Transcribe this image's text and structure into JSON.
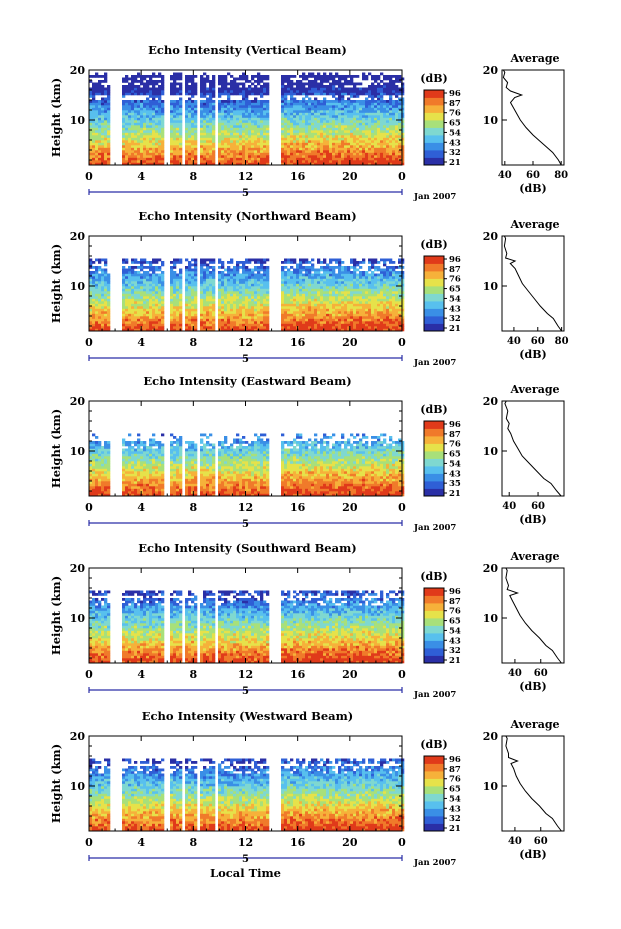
{
  "figure": {
    "x_axis_label": "Local Time",
    "date_label": "Jan 2007",
    "day_label": "5",
    "colorbar_unit": "(dB)",
    "average_title": "Average",
    "average_xlabel": "(dB)",
    "y_label": "Height (km)",
    "colors": [
      "#2a2fa6",
      "#2f5fd6",
      "#3a8fe6",
      "#58c0ee",
      "#7fd8d0",
      "#a8e07a",
      "#e6e24a",
      "#f6b13a",
      "#f07a2a",
      "#e03a1a"
    ]
  },
  "chart_data": [
    {
      "type": "heatmap",
      "title": "Echo Intensity (Vertical Beam)",
      "xlabel": "",
      "ylabel": "Height (km)",
      "xlim": [
        0,
        24
      ],
      "ylim": [
        1,
        20
      ],
      "x_ticks": [
        "0",
        "4",
        "8",
        "12",
        "16",
        "20",
        "0"
      ],
      "y_ticks": [
        "20",
        "10"
      ],
      "colorbar": {
        "label": "(dB)",
        "ticks": [
          "96",
          "87",
          "76",
          "65",
          "54",
          "43",
          "32",
          "21"
        ]
      },
      "top_height_km": 19.5,
      "gaps_h": [
        [
          1.55,
          2.45
        ],
        [
          5.7,
          6.0
        ],
        [
          7.0,
          7.35
        ],
        [
          8.15,
          8.45
        ],
        [
          9.5,
          9.85
        ],
        [
          13.7,
          14.7
        ]
      ],
      "average_profile": {
        "title": "Average",
        "xlabel": "(dB)",
        "xlim": [
          38,
          82
        ],
        "x_ticks": [
          "40",
          "60",
          "80"
        ],
        "ylim": [
          1,
          20
        ],
        "y_ticks": [
          "20",
          "10"
        ],
        "points": [
          [
            80,
            1
          ],
          [
            78,
            2
          ],
          [
            74,
            3.5
          ],
          [
            70,
            4.5
          ],
          [
            64,
            6
          ],
          [
            60,
            7
          ],
          [
            55,
            8.5
          ],
          [
            51,
            10
          ],
          [
            48,
            11.5
          ],
          [
            46,
            12.5
          ],
          [
            44,
            13.5
          ],
          [
            47,
            14.5
          ],
          [
            52,
            15
          ],
          [
            44,
            15.8
          ],
          [
            41,
            16.5
          ],
          [
            42,
            17.5
          ],
          [
            39,
            18.5
          ],
          [
            40,
            19.5
          ],
          [
            39,
            20
          ]
        ]
      }
    },
    {
      "type": "heatmap",
      "title": "Echo Intensity (Northward Beam)",
      "xlabel": "",
      "ylabel": "Height (km)",
      "xlim": [
        0,
        24
      ],
      "ylim": [
        1,
        20
      ],
      "x_ticks": [
        "0",
        "4",
        "8",
        "12",
        "16",
        "20",
        "0"
      ],
      "y_ticks": [
        "20",
        "10"
      ],
      "colorbar": {
        "label": "(dB)",
        "ticks": [
          "96",
          "87",
          "76",
          "65",
          "54",
          "43",
          "32",
          "21"
        ]
      },
      "top_height_km": 15.5,
      "gaps_h": [
        [
          1.55,
          2.45
        ],
        [
          5.7,
          6.0
        ],
        [
          7.0,
          7.35
        ],
        [
          8.15,
          8.45
        ],
        [
          9.5,
          9.85
        ],
        [
          13.7,
          14.7
        ]
      ],
      "average_profile": {
        "title": "Average",
        "xlabel": "(dB)",
        "xlim": [
          30,
          82
        ],
        "x_ticks": [
          "40",
          "60",
          "80"
        ],
        "ylim": [
          1,
          20
        ],
        "y_ticks": [
          "20",
          "10"
        ],
        "points": [
          [
            80,
            1
          ],
          [
            77,
            2
          ],
          [
            73,
            3.5
          ],
          [
            68,
            4.5
          ],
          [
            62,
            6
          ],
          [
            57,
            7.5
          ],
          [
            52,
            9
          ],
          [
            47,
            10.5
          ],
          [
            44,
            12
          ],
          [
            41,
            13.5
          ],
          [
            37,
            14.5
          ],
          [
            41,
            15
          ],
          [
            33,
            15.6
          ],
          [
            34,
            16.5
          ],
          [
            32,
            18
          ],
          [
            33,
            19.5
          ],
          [
            32,
            20
          ]
        ]
      }
    },
    {
      "type": "heatmap",
      "title": "Echo Intensity (Eastward Beam)",
      "xlabel": "",
      "ylabel": "Height (km)",
      "xlim": [
        0,
        24
      ],
      "ylim": [
        1,
        20
      ],
      "x_ticks": [
        "0",
        "4",
        "8",
        "12",
        "16",
        "20",
        "0"
      ],
      "y_ticks": [
        "20",
        "10"
      ],
      "colorbar": {
        "label": "(dB)",
        "ticks": [
          "96",
          "87",
          "76",
          "65",
          "54",
          "43",
          "35",
          "21"
        ]
      },
      "top_height_km": 13.5,
      "gaps_h": [
        [
          1.55,
          2.45
        ],
        [
          5.7,
          6.0
        ],
        [
          7.0,
          7.35
        ],
        [
          8.15,
          8.45
        ],
        [
          9.5,
          9.85
        ],
        [
          13.7,
          14.7
        ]
      ],
      "average_profile": {
        "title": "Average",
        "xlabel": "(dB)",
        "xlim": [
          35,
          78
        ],
        "x_ticks": [
          "40",
          "60"
        ],
        "ylim": [
          1,
          20
        ],
        "y_ticks": [
          "20",
          "10"
        ],
        "points": [
          [
            76,
            1
          ],
          [
            73,
            2
          ],
          [
            69,
            3.5
          ],
          [
            64,
            4.5
          ],
          [
            59,
            6
          ],
          [
            54,
            7.5
          ],
          [
            49,
            9
          ],
          [
            46,
            10.5
          ],
          [
            43,
            12
          ],
          [
            41,
            13.5
          ],
          [
            39,
            14.5
          ],
          [
            40,
            15.5
          ],
          [
            38,
            16.5
          ],
          [
            39,
            18
          ],
          [
            37,
            19.5
          ],
          [
            38,
            20
          ]
        ]
      }
    },
    {
      "type": "heatmap",
      "title": "Echo Intensity (Southward Beam)",
      "xlabel": "",
      "ylabel": "Height (km)",
      "xlim": [
        0,
        24
      ],
      "ylim": [
        1,
        20
      ],
      "x_ticks": [
        "0",
        "4",
        "8",
        "12",
        "16",
        "20",
        "0"
      ],
      "y_ticks": [
        "20",
        "10"
      ],
      "colorbar": {
        "label": "(dB)",
        "ticks": [
          "96",
          "87",
          "76",
          "65",
          "54",
          "43",
          "32",
          "21"
        ]
      },
      "top_height_km": 15.5,
      "gaps_h": [
        [
          1.55,
          2.45
        ],
        [
          5.7,
          6.0
        ],
        [
          7.0,
          7.35
        ],
        [
          8.15,
          8.45
        ],
        [
          9.5,
          9.85
        ],
        [
          13.7,
          14.7
        ]
      ],
      "average_profile": {
        "title": "Average",
        "xlabel": "(dB)",
        "xlim": [
          30,
          78
        ],
        "x_ticks": [
          "40",
          "60"
        ],
        "ylim": [
          1,
          20
        ],
        "y_ticks": [
          "20",
          "10"
        ],
        "points": [
          [
            76,
            1
          ],
          [
            73,
            2
          ],
          [
            69,
            3.5
          ],
          [
            64,
            4.5
          ],
          [
            59,
            6
          ],
          [
            53,
            7.5
          ],
          [
            48,
            9
          ],
          [
            44,
            10.5
          ],
          [
            41,
            12
          ],
          [
            38,
            13.5
          ],
          [
            36,
            14.5
          ],
          [
            42,
            15
          ],
          [
            34,
            15.7
          ],
          [
            35,
            16.5
          ],
          [
            33,
            18
          ],
          [
            34,
            19.5
          ],
          [
            33,
            20
          ]
        ]
      }
    },
    {
      "type": "heatmap",
      "title": "Echo Intensity (Westward Beam)",
      "xlabel": "Local Time",
      "ylabel": "Height (km)",
      "xlim": [
        0,
        24
      ],
      "ylim": [
        1,
        20
      ],
      "x_ticks": [
        "0",
        "4",
        "8",
        "12",
        "16",
        "20",
        "0"
      ],
      "y_ticks": [
        "20",
        "10"
      ],
      "colorbar": {
        "label": "(dB)",
        "ticks": [
          "96",
          "87",
          "76",
          "65",
          "54",
          "43",
          "32",
          "21"
        ]
      },
      "top_height_km": 15.5,
      "gaps_h": [
        [
          1.55,
          2.45
        ],
        [
          5.7,
          6.0
        ],
        [
          7.0,
          7.35
        ],
        [
          8.15,
          8.45
        ],
        [
          9.5,
          9.85
        ],
        [
          13.7,
          14.7
        ]
      ],
      "average_profile": {
        "title": "Average",
        "xlabel": "(dB)",
        "xlim": [
          30,
          78
        ],
        "x_ticks": [
          "40",
          "60"
        ],
        "ylim": [
          1,
          20
        ],
        "y_ticks": [
          "20",
          "10"
        ],
        "points": [
          [
            76,
            1
          ],
          [
            73,
            2
          ],
          [
            69,
            3.5
          ],
          [
            64,
            4.5
          ],
          [
            59,
            6
          ],
          [
            53,
            7.5
          ],
          [
            48,
            9
          ],
          [
            44,
            10.5
          ],
          [
            41,
            12
          ],
          [
            39,
            13.5
          ],
          [
            37,
            14.5
          ],
          [
            42,
            15
          ],
          [
            35,
            15.7
          ],
          [
            35,
            16.5
          ],
          [
            33,
            18
          ],
          [
            34,
            19.5
          ],
          [
            33,
            20
          ]
        ]
      }
    }
  ]
}
